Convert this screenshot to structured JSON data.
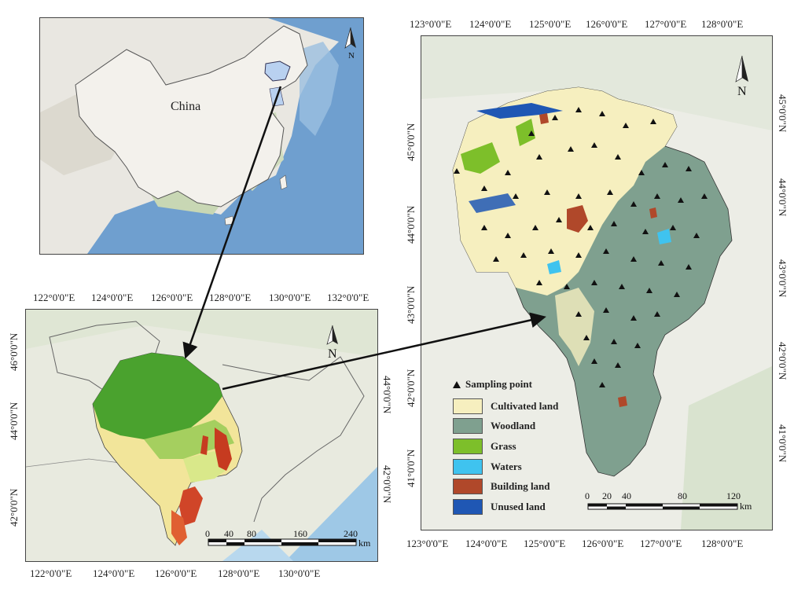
{
  "china_map": {
    "label": "China",
    "north": "N"
  },
  "left_map": {
    "top_ticks": [
      "122°0'0\"E",
      "124°0'0\"E",
      "126°0'0\"E",
      "128°0'0\"E",
      "130°0'0\"E",
      "132°0'0\"E"
    ],
    "bottom_ticks": [
      "122°0'0\"E",
      "124°0'0\"E",
      "126°0'0\"E",
      "128°0'0\"E",
      "130°0'0\"E"
    ],
    "left_ticks": [
      "46°0'0\"N",
      "44°0'0\"N",
      "42°0'0\"N"
    ],
    "right_ticks": [
      "44°0'0\"N",
      "42°0'0\"N"
    ],
    "north": "N",
    "scale": [
      "0",
      "40",
      "80",
      "160",
      "240"
    ],
    "scale_unit": "km"
  },
  "right_map": {
    "top_ticks": [
      "123°0'0\"E",
      "124°0'0\"E",
      "125°0'0\"E",
      "126°0'0\"E",
      "127°0'0\"E",
      "128°0'0\"E"
    ],
    "bottom_ticks": [
      "123°0'0\"E",
      "124°0'0\"E",
      "125°0'0\"E",
      "126°0'0\"E",
      "127°0'0\"E",
      "128°0'0\"E"
    ],
    "left_ticks": [
      "45°0'0\"N",
      "44°0'0\"N",
      "43°0'0\"N",
      "42°0'0\"N",
      "41°0'0\"N"
    ],
    "right_ticks": [
      "45°0'0\"N",
      "44°0'0\"N",
      "43°0'0\"N",
      "42°0'0\"N",
      "41°0'0\"N"
    ],
    "north": "N",
    "scale": [
      "0",
      "20",
      "40",
      "80",
      "120"
    ],
    "scale_unit": "km",
    "legend": {
      "sampling_point": "Sampling point",
      "items": [
        {
          "label": "Cultivated land",
          "color": "#f6efbf"
        },
        {
          "label": "Woodland",
          "color": "#7fa08f"
        },
        {
          "label": "Grass",
          "color": "#7dbf2a"
        },
        {
          "label": "Waters",
          "color": "#3fc3ef"
        },
        {
          "label": "Building land",
          "color": "#b0482a"
        },
        {
          "label": "Unused land",
          "color": "#1f57b4"
        }
      ]
    }
  }
}
